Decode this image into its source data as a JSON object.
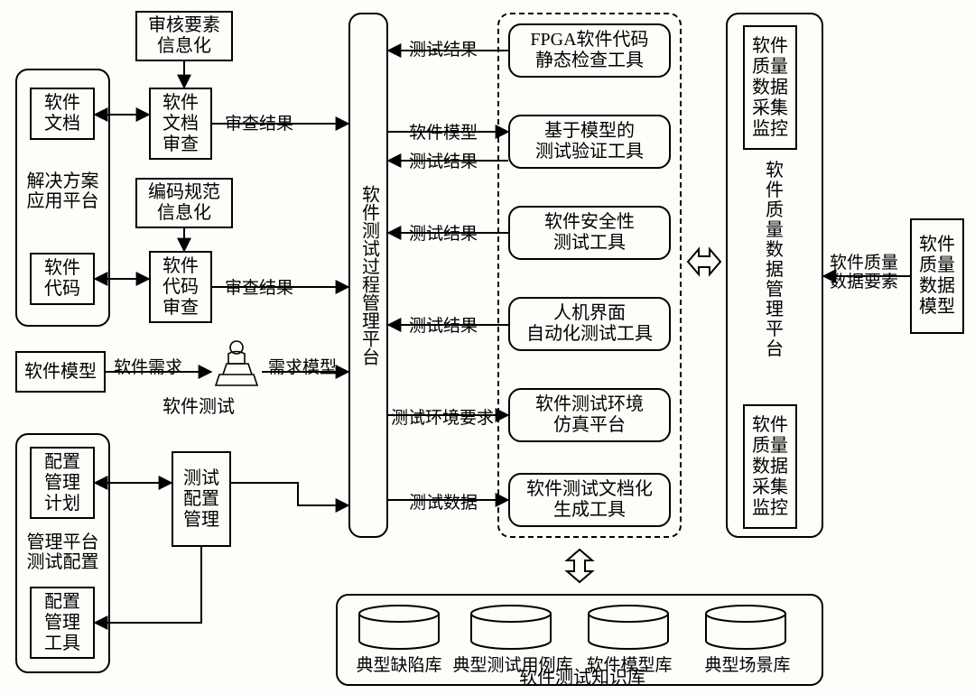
{
  "diagram": {
    "type": "flowchart",
    "background_color": "#fdfdfa",
    "stroke_color": "#000000",
    "text_color": "#000000",
    "font_family": "SimSun",
    "font_size_pt": 15,
    "nodes": {
      "auditElemInfo": {
        "label": "审核要素\n信息化"
      },
      "docReview": {
        "label": "软件\n文档\n审查"
      },
      "codingSpecInfo": {
        "label": "编码规范\n信息化"
      },
      "codeReview": {
        "label": "软件\n代码\n审查"
      },
      "swDoc": {
        "label": "软件\n文档"
      },
      "swCode": {
        "label": "软件\n代码"
      },
      "solutionPlatformLabel": {
        "label": "解决方案\n应用平台"
      },
      "swModelLeft": {
        "label": "软件模型"
      },
      "swTestLabel": {
        "label": "软件测试"
      },
      "cfgPlan": {
        "label": "配置\n管理\n计划"
      },
      "cfgTool": {
        "label": "配置\n管理\n工具"
      },
      "cfgPlatformLabel": {
        "label": "管理平台\n测试配置"
      },
      "testCfgMgmt": {
        "label": "测试\n配置\n管理"
      },
      "testProcMgmt": {
        "label": "软件测试过程管理平台"
      },
      "toolFpga": {
        "label": "FPGA软件代码\n静态检查工具"
      },
      "toolModel": {
        "label": "基于模型的\n测试验证工具"
      },
      "toolSafety": {
        "label": "软件安全性\n测试工具"
      },
      "toolHmi": {
        "label": "人机界面\n自动化测试工具"
      },
      "toolEnv": {
        "label": "软件测试环境\n仿真平台"
      },
      "toolDoc": {
        "label": "软件测试文档化\n生成工具"
      },
      "qualCollectTop": {
        "label": "软件\n质量\n数据\n采集\n监控"
      },
      "qualCollectBot": {
        "label": "软件\n质量\n数据\n采集\n监控"
      },
      "qualMgmt": {
        "label": "软件质量数据管理平台"
      },
      "swQualModel": {
        "label": "软件\n质量\n数据\n模型"
      },
      "dbDefect": {
        "label": "典型缺陷库"
      },
      "dbTestcase": {
        "label": "典型测试用例库"
      },
      "dbModel": {
        "label": "软件模型库"
      },
      "dbScenario": {
        "label": "典型场景库"
      },
      "knowledgeBase": {
        "label": "软件测试知识库"
      }
    },
    "edges": {
      "e1": {
        "label": "审查结果"
      },
      "e2": {
        "label": "审查结果"
      },
      "e3": {
        "label": "软件需求"
      },
      "e4": {
        "label": "需求模型"
      },
      "e5": {
        "label": "测试结果"
      },
      "e6": {
        "label": "软件模型"
      },
      "e7": {
        "label": "测试结果"
      },
      "e8": {
        "label": "测试结果"
      },
      "e9": {
        "label": "测试结果"
      },
      "e10": {
        "label": "测试环境要求"
      },
      "e11": {
        "label": "测试数据"
      },
      "e12": {
        "label": "软件质量\n数据要素"
      }
    }
  }
}
